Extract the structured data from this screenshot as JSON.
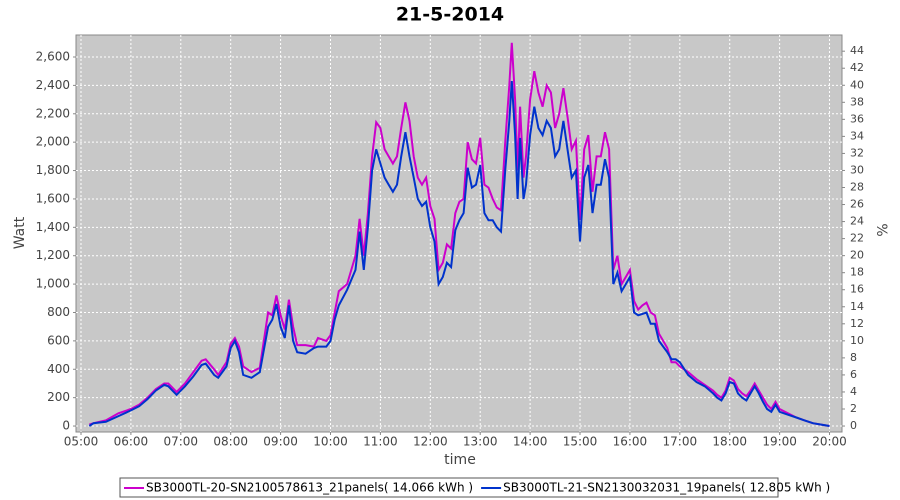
{
  "chart_data": {
    "type": "line",
    "title": "21-5-2014",
    "x_label": "time",
    "y_label": "Watt",
    "y2_label": "%",
    "x": [
      "05:10",
      "05:15",
      "05:30",
      "05:45",
      "06:00",
      "06:10",
      "06:20",
      "06:30",
      "06:40",
      "06:45",
      "06:55",
      "07:05",
      "07:15",
      "07:25",
      "07:30",
      "07:40",
      "07:45",
      "07:55",
      "08:00",
      "08:05",
      "08:10",
      "08:15",
      "08:25",
      "08:35",
      "08:45",
      "08:50",
      "08:55",
      "09:00",
      "09:05",
      "09:10",
      "09:15",
      "09:20",
      "09:30",
      "09:40",
      "09:45",
      "09:55",
      "10:00",
      "10:05",
      "10:10",
      "10:20",
      "10:30",
      "10:35",
      "10:40",
      "10:45",
      "10:50",
      "10:55",
      "11:00",
      "11:05",
      "11:10",
      "11:15",
      "11:20",
      "11:25",
      "11:30",
      "11:35",
      "11:40",
      "11:45",
      "11:50",
      "11:55",
      "12:00",
      "12:05",
      "12:10",
      "12:15",
      "12:20",
      "12:25",
      "12:30",
      "12:35",
      "12:40",
      "12:45",
      "12:50",
      "12:55",
      "13:00",
      "13:05",
      "13:10",
      "13:15",
      "13:20",
      "13:25",
      "13:30",
      "13:35",
      "13:38",
      "13:42",
      "13:45",
      "13:48",
      "13:52",
      "13:55",
      "14:00",
      "14:05",
      "14:10",
      "14:15",
      "14:20",
      "14:25",
      "14:30",
      "14:35",
      "14:40",
      "14:45",
      "14:50",
      "14:55",
      "15:00",
      "15:05",
      "15:10",
      "15:15",
      "15:20",
      "15:25",
      "15:30",
      "15:35",
      "15:40",
      "15:45",
      "15:50",
      "15:55",
      "16:00",
      "16:05",
      "16:10",
      "16:15",
      "16:20",
      "16:25",
      "16:30",
      "16:35",
      "16:40",
      "16:45",
      "16:50",
      "16:55",
      "17:00",
      "17:10",
      "17:20",
      "17:30",
      "17:40",
      "17:45",
      "17:50",
      "17:55",
      "18:00",
      "18:05",
      "18:10",
      "18:15",
      "18:20",
      "18:25",
      "18:30",
      "18:35",
      "18:40",
      "18:45",
      "18:50",
      "18:55",
      "19:00",
      "19:10",
      "19:20",
      "19:30",
      "19:40",
      "19:50",
      "20:00"
    ],
    "series": [
      {
        "name": "SB3000TL-20-SN2100578613_21panels( 14.066 kWh )",
        "color": "#cc00cc",
        "values": [
          10,
          20,
          40,
          90,
          120,
          150,
          200,
          260,
          300,
          300,
          240,
          300,
          380,
          460,
          470,
          400,
          360,
          450,
          580,
          620,
          560,
          420,
          380,
          410,
          800,
          780,
          920,
          780,
          680,
          890,
          700,
          570,
          570,
          560,
          620,
          600,
          640,
          800,
          950,
          1000,
          1200,
          1460,
          1200,
          1500,
          1900,
          2140,
          2100,
          1950,
          1900,
          1850,
          1900,
          2100,
          2280,
          2150,
          1900,
          1750,
          1700,
          1750,
          1550,
          1460,
          1100,
          1150,
          1280,
          1250,
          1500,
          1580,
          1600,
          2000,
          1880,
          1850,
          2030,
          1700,
          1680,
          1600,
          1540,
          1520,
          2000,
          2400,
          2700,
          2300,
          1800,
          2250,
          1750,
          1900,
          2300,
          2500,
          2350,
          2250,
          2400,
          2350,
          2100,
          2200,
          2380,
          2180,
          1950,
          2010,
          1450,
          1950,
          2050,
          1650,
          1900,
          1900,
          2070,
          1950,
          1100,
          1200,
          1000,
          1050,
          1100,
          880,
          820,
          850,
          870,
          800,
          780,
          650,
          600,
          550,
          450,
          450,
          420,
          380,
          330,
          290,
          250,
          220,
          200,
          250,
          340,
          320,
          260,
          230,
          210,
          250,
          300,
          250,
          200,
          150,
          120,
          170,
          120,
          90,
          60,
          40,
          20,
          10,
          0
        ]
      },
      {
        "name": "SB3000TL-21-SN2130032031_19panels( 12.805 kWh )",
        "color": "#0033cc",
        "values": [
          0,
          20,
          30,
          70,
          110,
          140,
          190,
          250,
          290,
          280,
          220,
          280,
          350,
          430,
          440,
          360,
          340,
          420,
          550,
          600,
          520,
          360,
          340,
          380,
          700,
          750,
          860,
          700,
          620,
          850,
          600,
          520,
          510,
          550,
          560,
          560,
          600,
          750,
          850,
          960,
          1100,
          1370,
          1100,
          1400,
          1800,
          1950,
          1850,
          1750,
          1700,
          1650,
          1700,
          1900,
          2070,
          1900,
          1750,
          1600,
          1550,
          1580,
          1400,
          1300,
          1000,
          1050,
          1150,
          1120,
          1380,
          1450,
          1500,
          1820,
          1680,
          1700,
          1840,
          1500,
          1450,
          1450,
          1400,
          1370,
          1800,
          2150,
          2430,
          2050,
          1600,
          2030,
          1600,
          1700,
          2050,
          2250,
          2100,
          2050,
          2150,
          2100,
          1900,
          1950,
          2150,
          1950,
          1750,
          1800,
          1300,
          1750,
          1840,
          1500,
          1700,
          1700,
          1880,
          1750,
          1000,
          1080,
          950,
          1000,
          1050,
          800,
          780,
          790,
          800,
          720,
          720,
          600,
          560,
          520,
          470,
          470,
          450,
          360,
          310,
          280,
          230,
          200,
          180,
          230,
          310,
          300,
          230,
          200,
          180,
          230,
          280,
          230,
          170,
          120,
          100,
          150,
          100,
          80,
          60,
          40,
          20,
          10,
          0
        ]
      }
    ],
    "xlim": [
      "04:54",
      "20:15"
    ],
    "xticks": [
      "05:00",
      "06:00",
      "07:00",
      "08:00",
      "09:00",
      "10:00",
      "11:00",
      "12:00",
      "13:00",
      "14:00",
      "15:00",
      "16:00",
      "17:00",
      "18:00",
      "19:00",
      "20:00"
    ],
    "ylim": [
      -42,
      2755
    ],
    "yticks": [
      0,
      200,
      400,
      600,
      800,
      {
        "value": 1000,
        "label": "1,000"
      },
      {
        "value": 1200,
        "label": "1,200"
      },
      {
        "value": 1400,
        "label": "1,400"
      },
      {
        "value": 1600,
        "label": "1,600"
      },
      {
        "value": 1800,
        "label": "1,800"
      },
      {
        "value": 2000,
        "label": "2,000"
      },
      {
        "value": 2200,
        "label": "2,200"
      },
      {
        "value": 2400,
        "label": "2,400"
      },
      {
        "value": 2600,
        "label": "2,600"
      }
    ],
    "y2lim": [
      -0.7,
      45.9
    ],
    "y2ticks": [
      0,
      2,
      4,
      6,
      8,
      10,
      12,
      14,
      16,
      18,
      20,
      22,
      24,
      26,
      28,
      30,
      32,
      34,
      36,
      38,
      40,
      42,
      44
    ],
    "grid": true,
    "legend": "bottom"
  }
}
